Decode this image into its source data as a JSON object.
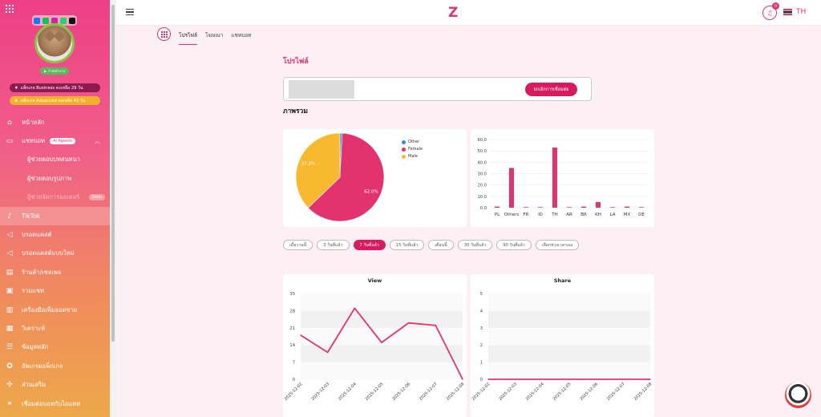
{
  "header": {
    "logo": "Z",
    "notification_count": "0",
    "language": "TH"
  },
  "sidebar": {
    "package_business": "แพ็กเกจ Business คงเหลือ 29 วัน",
    "package_advanced": "แพ็กเกจ Advanced คงเหลือ 43 วัน",
    "status": "กำลังทำงาน",
    "items": [
      {
        "label": "หน้าหลัก",
        "icon": "home-icon"
      },
      {
        "label": "แชทบอท",
        "icon": "chat-icon",
        "badge": "Ai Agents"
      },
      {
        "label": "ผู้ช่วยตอบบทสนทนา"
      },
      {
        "label": "ผู้ช่วยตอบรูปภาพ"
      },
      {
        "label": "ผู้ช่วยจัดการออเดอร์",
        "badge": "Soon"
      },
      {
        "label": "TikTok",
        "icon": "tiktok-icon"
      },
      {
        "label": "บรอดแคสต์",
        "icon": "megaphone-icon"
      },
      {
        "label": "บรอดแคสต์แบบใหม่",
        "icon": "megaphone-icon"
      },
      {
        "label": "ร้านค้า/เซลเพจ",
        "icon": "store-icon"
      },
      {
        "label": "รวมแชท",
        "icon": "chats-icon"
      },
      {
        "label": "เครื่องมือเพิ่มยอดขาย",
        "icon": "chart-icon"
      },
      {
        "label": "วิเคราะห์",
        "icon": "analytics-icon"
      },
      {
        "label": "ข้อมูลหลัก",
        "icon": "data-icon"
      },
      {
        "label": "อัพเกรดแพ็กเกจ",
        "icon": "upgrade-icon"
      },
      {
        "label": "ส่วนเสริม",
        "icon": "addon-icon"
      },
      {
        "label": "เชื่อมต่อบอทกับไอแคท",
        "icon": "link-icon"
      }
    ]
  },
  "tabs": [
    "โปรไฟล์",
    "โฆษณา",
    "แชทบอท"
  ],
  "page_title": "โปรไฟล์",
  "account": {
    "disconnect_label": "ยกเลิกการเชื่อมต่อ"
  },
  "overview_title": "ภาพรวม",
  "filters": [
    "เมื่อวานนี้",
    "3 วันที่แล้ว",
    "7 วันที่แล้ว",
    "15 วันที่แล้ว",
    "เดือนนี้",
    "30 วันที่แล้ว",
    "90 วันที่แล้ว",
    "เลือกช่วงเวลาเอง"
  ],
  "colors": {
    "accent": "#e2336f",
    "female": "#e2336f",
    "male": "#f8b931",
    "other": "#2d8fd8"
  },
  "chart_data": [
    {
      "type": "pie",
      "labels": [
        "Other",
        "Female",
        "Male"
      ],
      "values": [
        0.8,
        62.0,
        37.2
      ],
      "slice_labels": [
        "",
        "62.0%",
        "37.2%"
      ],
      "legend": "top-right"
    },
    {
      "type": "bar",
      "categories": [
        "PL",
        "Others",
        "FR",
        "ID",
        "TH",
        "AR",
        "BR",
        "KH",
        "LA",
        "MX",
        "DE"
      ],
      "values": [
        1,
        35,
        0.5,
        0.5,
        53,
        0.5,
        1,
        5,
        0.5,
        1,
        0.5
      ],
      "ylim": [
        0,
        60
      ],
      "yticks": [
        "0.0",
        "10.0",
        "20.0",
        "30.0",
        "40.0",
        "50.0",
        "60.0"
      ]
    },
    {
      "type": "line",
      "title": "View",
      "x": [
        "2025-12-02",
        "2025-12-03",
        "2025-12-04",
        "2025-12-05",
        "2025-12-06",
        "2025-12-07",
        "2025-12-08"
      ],
      "values": [
        18,
        11,
        29,
        15,
        23,
        22,
        0
      ],
      "ylim": [
        0,
        35
      ],
      "yticks": [
        "0",
        "7",
        "14",
        "21",
        "28",
        "35"
      ]
    },
    {
      "type": "line",
      "title": "Share",
      "x": [
        "2025-12-02",
        "2025-12-03",
        "2025-12-04",
        "2025-12-05",
        "2025-12-06",
        "2025-12-07",
        "2025-12-08"
      ],
      "values": [
        0,
        0,
        0,
        0,
        0,
        0,
        0
      ],
      "ylim": [
        0,
        5
      ],
      "yticks": [
        "0",
        "1",
        "2",
        "3",
        "4",
        "5"
      ]
    }
  ]
}
